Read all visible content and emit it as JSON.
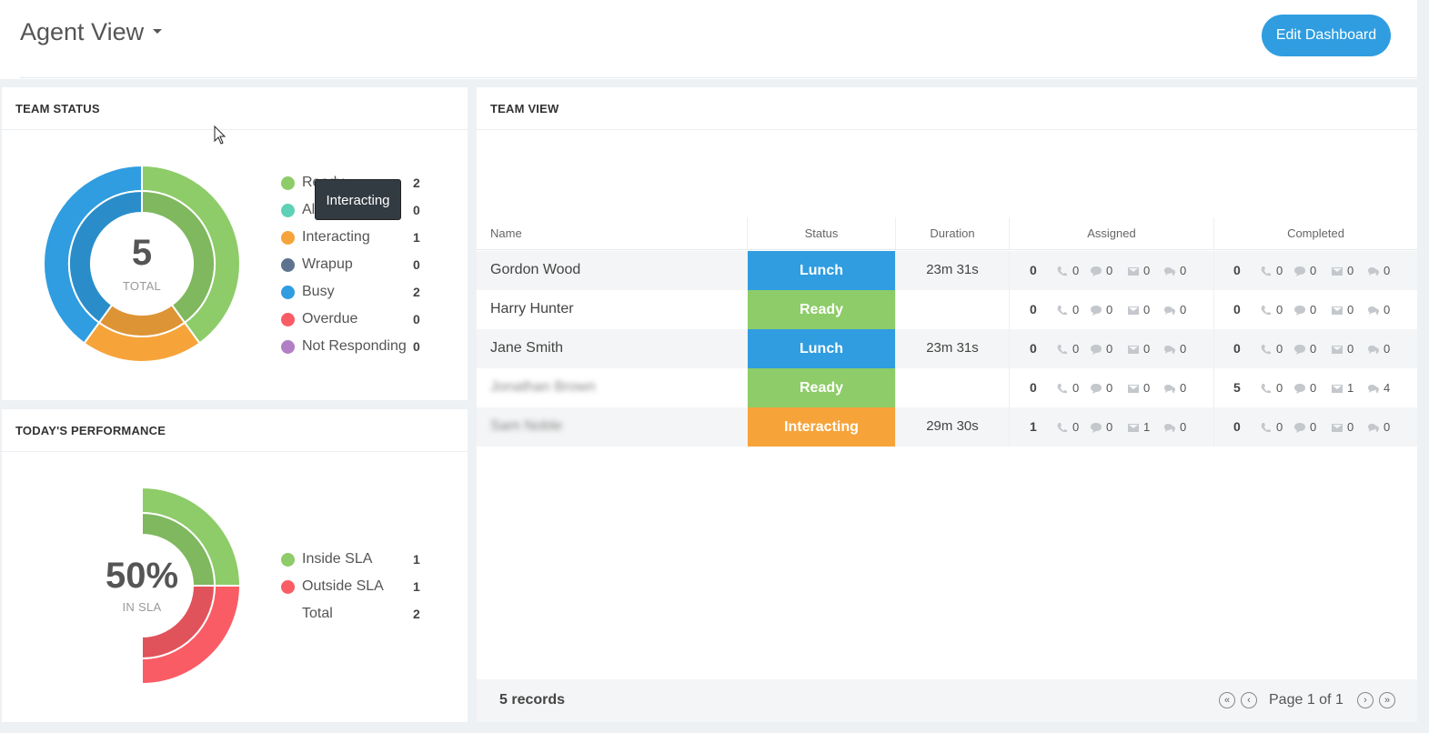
{
  "header": {
    "title": "Agent View",
    "edit_button": "Edit Dashboard"
  },
  "team_status": {
    "title": "TEAM STATUS",
    "total": "5",
    "total_label": "TOTAL",
    "items": [
      {
        "label": "Ready",
        "count": "2",
        "color": "#8dcc68"
      },
      {
        "label": "Alerting",
        "count": "0",
        "color": "#5fd1b6"
      },
      {
        "label": "Interacting",
        "count": "1",
        "color": "#f6a43a"
      },
      {
        "label": "Wrapup",
        "count": "0",
        "color": "#5d7390"
      },
      {
        "label": "Busy",
        "count": "2",
        "color": "#2f9de0"
      },
      {
        "label": "Overdue",
        "count": "0",
        "color": "#fa5c65"
      },
      {
        "label": "Not Responding",
        "count": "0",
        "color": "#b27ec4"
      }
    ],
    "tooltip": "Interacting"
  },
  "performance": {
    "title": "TODAY'S PERFORMANCE",
    "value": "50%",
    "value_label": "IN SLA",
    "items": [
      {
        "label": "Inside SLA",
        "count": "1",
        "color": "#8dcc68"
      },
      {
        "label": "Outside SLA",
        "count": "1",
        "color": "#fa5c65"
      },
      {
        "label": "Total",
        "count": "2",
        "color": ""
      }
    ]
  },
  "team_view": {
    "title": "TEAM VIEW",
    "columns": {
      "name": "Name",
      "status": "Status",
      "duration": "Duration",
      "assigned": "Assigned",
      "completed": "Completed"
    },
    "rows": [
      {
        "name": "Gordon Wood",
        "status": "Lunch",
        "status_color": "#2f9de0",
        "duration": "23m 31s",
        "assigned": {
          "total": "0",
          "voice": "0",
          "chat": "0",
          "email": "0",
          "message": "0"
        },
        "completed": {
          "total": "0",
          "voice": "0",
          "chat": "0",
          "email": "0",
          "message": "0"
        }
      },
      {
        "name": "Harry Hunter",
        "status": "Ready",
        "status_color": "#8dcc68",
        "duration": "",
        "assigned": {
          "total": "0",
          "voice": "0",
          "chat": "0",
          "email": "0",
          "message": "0"
        },
        "completed": {
          "total": "0",
          "voice": "0",
          "chat": "0",
          "email": "0",
          "message": "0"
        }
      },
      {
        "name": "Jane Smith",
        "status": "Lunch",
        "status_color": "#2f9de0",
        "duration": "23m 31s",
        "assigned": {
          "total": "0",
          "voice": "0",
          "chat": "0",
          "email": "0",
          "message": "0"
        },
        "completed": {
          "total": "0",
          "voice": "0",
          "chat": "0",
          "email": "0",
          "message": "0"
        }
      },
      {
        "name": "Jonathan Brown",
        "blurred": true,
        "status": "Ready",
        "status_color": "#8dcc68",
        "duration": "",
        "assigned": {
          "total": "0",
          "voice": "0",
          "chat": "0",
          "email": "0",
          "message": "0"
        },
        "completed": {
          "total": "5",
          "voice": "0",
          "chat": "0",
          "email": "1",
          "message": "4"
        }
      },
      {
        "name": "Sam Noble",
        "blurred": true,
        "status": "Interacting",
        "status_color": "#f6a43a",
        "duration": "29m 30s",
        "assigned": {
          "total": "1",
          "voice": "0",
          "chat": "0",
          "email": "1",
          "message": "0"
        },
        "completed": {
          "total": "0",
          "voice": "0",
          "chat": "0",
          "email": "0",
          "message": "0"
        }
      }
    ],
    "footer": {
      "records": "5 records",
      "page": "Page 1 of 1"
    }
  }
}
